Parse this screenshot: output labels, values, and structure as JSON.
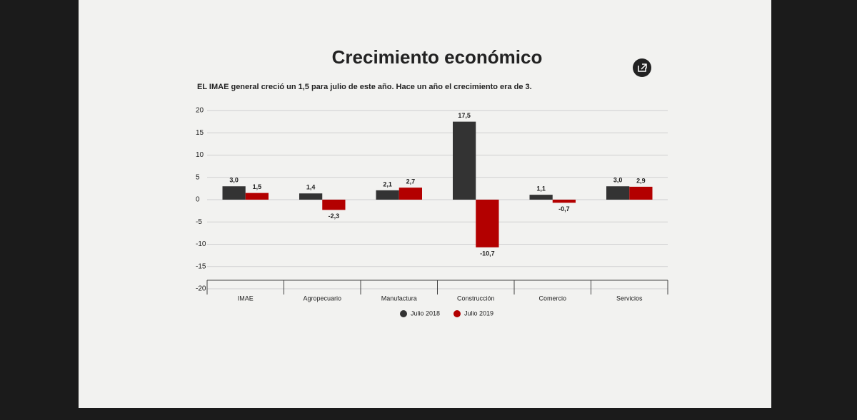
{
  "chart_data": {
    "type": "bar",
    "title": "Crecimiento económico",
    "subtitle": "EL IMAE general creció un 1,5 para julio de este año. Hace un año el crecimiento era de 3.",
    "categories": [
      "IMAE",
      "Agropecuario",
      "Manufactura",
      "Construcción",
      "Comercio",
      "Servicios"
    ],
    "series": [
      {
        "name": "Julio 2018",
        "color": "#333333",
        "values": [
          3.0,
          1.4,
          2.1,
          17.5,
          1.1,
          3.0
        ],
        "value_labels": [
          "3,0",
          "1,4",
          "2,1",
          "17,5",
          "1,1",
          "3,0"
        ]
      },
      {
        "name": "Julio 2019",
        "color": "#b30000",
        "values": [
          1.5,
          -2.3,
          2.7,
          -10.7,
          -0.7,
          2.9
        ],
        "value_labels": [
          "1,5",
          "-2,3",
          "2,7",
          "-10,7",
          "-0,7",
          "2,9"
        ]
      }
    ],
    "ylim": [
      -20,
      20
    ],
    "yticks": [
      20,
      15,
      10,
      5,
      0,
      -5,
      -10,
      -15,
      -20
    ],
    "grid": true,
    "legend": "bottom"
  }
}
